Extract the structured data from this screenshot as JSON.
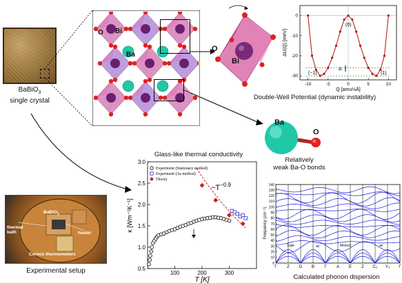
{
  "crystal": {
    "formula_main": "BaBiO",
    "formula_sub": "3",
    "caption_line2": "single crystal"
  },
  "setup": {
    "caption": "Experimental setup",
    "labels": {
      "sample_main": "BaBiO",
      "sample_sub": "3",
      "heater": "heater",
      "thermal_bath": "thermal\nbath",
      "thermometers": "Cernox thermometers"
    }
  },
  "lattice": {
    "label_o": "O",
    "label_bi": "Bi",
    "label_ba": "Ba"
  },
  "octahedron": {
    "label_o": "O",
    "label_bi": "Bi"
  },
  "double_well": {
    "caption": "Double-Well Potential (dynamic instability)",
    "chart_data": {
      "type": "line",
      "xlabel": "Q [amu½Å]",
      "ylabel": "ΔU(Q) [meV]",
      "xlim": [
        -12,
        12
      ],
      "ylim": [
        -32,
        5
      ],
      "xticks": [
        -10,
        -5,
        0,
        5,
        10
      ],
      "yticks": [
        0,
        -10,
        -20,
        -30
      ],
      "x": [
        -10,
        -9,
        -8,
        -7,
        -6,
        -5,
        -4,
        -3,
        -2,
        -1,
        0,
        1,
        2,
        3,
        4,
        5,
        6,
        7,
        8,
        9,
        10
      ],
      "y": [
        0,
        -20,
        -27,
        -30,
        -29,
        -26,
        -21,
        -15,
        -8,
        -2,
        0,
        -2,
        -8,
        -15,
        -21,
        -26,
        -29,
        -30,
        -27,
        -20,
        0
      ],
      "annotations": {
        "top": "(0)",
        "left": "(−1)",
        "right": "(1)",
        "delta": "Δ"
      }
    }
  },
  "bond": {
    "label_ba": "Ba",
    "label_o": "O",
    "caption_line1": "Relatively",
    "caption_line2": "weak Ba-O bonds"
  },
  "thermal": {
    "title": "Glass-like thermal conductivity",
    "chart_data": {
      "type": "scatter",
      "xlabel": "T [K]",
      "ylabel": "κ [Wm⁻¹K⁻¹]",
      "xlim": [
        0,
        400
      ],
      "ylim": [
        0.5,
        3.0
      ],
      "xticks": [
        100,
        200,
        300
      ],
      "yticks": [
        0.5,
        1.0,
        1.5,
        2.0,
        2.5,
        3.0
      ],
      "series": [
        {
          "name": "Experiment (Stationary method)",
          "color": "#000000",
          "marker": "circle-open",
          "x": [
            5,
            8,
            10,
            13,
            16,
            20,
            25,
            30,
            35,
            40,
            50,
            60,
            70,
            80,
            90,
            100,
            110,
            120,
            130,
            140,
            150,
            160,
            170,
            180,
            190,
            200,
            210,
            220,
            230,
            240,
            250,
            260,
            270,
            280,
            290,
            300
          ],
          "y": [
            0.6,
            0.7,
            0.8,
            0.9,
            1.0,
            1.1,
            1.15,
            1.2,
            1.25,
            1.28,
            1.3,
            1.32,
            1.35,
            1.38,
            1.4,
            1.42,
            1.45,
            1.48,
            1.5,
            1.52,
            1.55,
            1.57,
            1.6,
            1.62,
            1.64,
            1.66,
            1.67,
            1.68,
            1.69,
            1.7,
            1.7,
            1.69,
            1.68,
            1.66,
            1.64,
            1.62
          ]
        },
        {
          "name": "Experiment (3ω method)",
          "color": "#2d2dc8",
          "marker": "square-open",
          "x": [
            310,
            320,
            330,
            340,
            350,
            360
          ],
          "y": [
            1.85,
            1.82,
            1.78,
            1.72,
            1.75,
            1.68
          ]
        },
        {
          "name": "Theory",
          "color": "#d22020",
          "marker": "diamond",
          "x": [
            200,
            250,
            300,
            350
          ],
          "y": [
            2.45,
            2.1,
            1.75,
            1.55
          ]
        }
      ],
      "fit_label": "~T",
      "fit_exponent": "−0.9",
      "fit_curve": {
        "x": [
          180,
          360
        ],
        "y": [
          2.85,
          1.45
        ]
      }
    }
  },
  "phonon": {
    "caption": "Calculated phonon dispersion",
    "chart_data": {
      "type": "line",
      "ylabel": "Frequency (cm⁻¹)",
      "ylim": [
        0,
        140
      ],
      "yticks": [
        0,
        10,
        20,
        30,
        40,
        50,
        60,
        70,
        80,
        90,
        100,
        110,
        120,
        130,
        140
      ],
      "kpoints": [
        "Γ",
        "Z",
        "D",
        "B",
        "Γ",
        "A",
        "E",
        "Z",
        "C₂",
        "Y₂",
        "Γ"
      ],
      "annotations": [
        "Mono1",
        "ac",
        "ac",
        "1opt"
      ]
    }
  }
}
